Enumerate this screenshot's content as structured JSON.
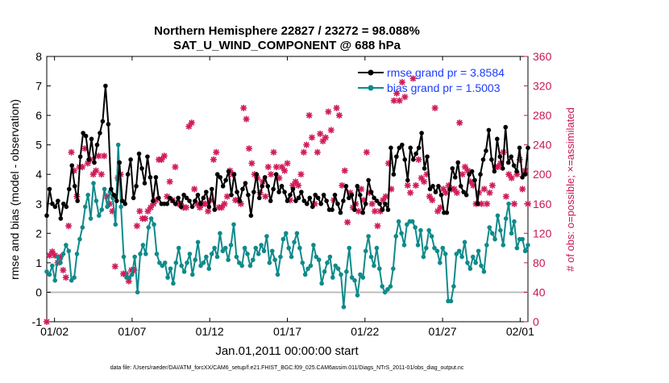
{
  "chart_data": {
    "type": "line",
    "title": "Northern Hemisphere 22827 / 23272 = 98.088%",
    "subtitle": "SAT_U_WIND_COMPONENT @ 688 hPa",
    "ylabel": "rmse and bias (model - observation)",
    "ylabel_right": "# of obs: o=possible; ×=assimilated",
    "xlabel": "Jan.01,2011 00:00:00 start",
    "footer": "data file: /Users/raeder/DAI/ATM_forcXX/CAM6_setup/f.e21.FHIST_BGC.f09_025.CAM6assim.011/Diags_NTrS_2011-01/obs_diag_output.nc",
    "ylim": [
      -1,
      8
    ],
    "ylim_right": [
      0,
      360
    ],
    "xlim": [
      0,
      31
    ],
    "yticks": [
      "-1",
      "0",
      "1",
      "2",
      "3",
      "4",
      "5",
      "6",
      "7",
      "8"
    ],
    "yticks_right": [
      "0",
      "40",
      "80",
      "120",
      "160",
      "200",
      "240",
      "280",
      "320",
      "360"
    ],
    "xticks": [
      {
        "day": 0.5,
        "label": "01/02"
      },
      {
        "day": 5.5,
        "label": "01/07"
      },
      {
        "day": 10.5,
        "label": "01/12"
      },
      {
        "day": 15.5,
        "label": "01/17"
      },
      {
        "day": 20.5,
        "label": "01/22"
      },
      {
        "day": 25.5,
        "label": "01/27"
      },
      {
        "day": 30.5,
        "label": "02/01"
      }
    ],
    "series": [
      {
        "name": "rmse grand pr = 3.8584",
        "color": "#000000",
        "values": [
          2.6,
          3.5,
          3.0,
          2.9,
          3.1,
          2.5,
          3.0,
          2.9,
          3.5,
          4.3,
          3.6,
          3.1,
          4.6,
          5.4,
          5.3,
          4.5,
          5.2,
          4.4,
          5.0,
          5.4,
          5.8,
          7.0,
          5.7,
          3.5,
          3.3,
          3.1,
          4.4,
          3.1,
          3.0,
          4.0,
          4.5,
          3.2,
          3.6,
          4.7,
          4.2,
          3.7,
          4.6,
          3.9,
          3.1,
          3.9,
          3.2,
          3.0,
          3.0,
          3.0,
          3.2,
          3.1,
          3.0,
          3.2,
          2.9,
          3.3,
          3.2,
          3.1,
          2.9,
          3.1,
          3.3,
          3.0,
          3.2,
          3.4,
          2.9,
          3.5,
          2.8,
          4.0,
          3.9,
          3.6,
          3.8,
          4.1,
          3.3,
          4.0,
          3.4,
          3.1,
          3.5,
          3.7,
          3.3,
          2.6,
          3.4,
          4.0,
          3.2,
          3.6,
          3.9,
          3.6,
          3.1,
          3.5,
          4.0,
          3.4,
          3.6,
          3.4,
          3.1,
          3.3,
          3.5,
          3.1,
          3.2,
          3.4,
          3.1,
          3.0,
          3.2,
          2.9,
          3.3,
          3.2,
          3.0,
          3.3,
          3.1,
          2.8,
          2.8,
          3.3,
          3.0,
          2.7,
          3.1,
          3.6,
          3.2,
          3.3,
          2.8,
          3.6,
          3.3,
          2.7,
          3.0,
          3.8,
          3.4,
          3.2,
          3.1,
          3.0,
          2.8,
          3.0,
          2.8,
          4.9,
          4.0,
          4.6,
          4.9,
          5.0,
          4.5,
          3.8,
          4.9,
          4.5,
          4.7,
          4.9,
          5.4,
          4.2,
          4.6,
          3.5,
          3.6,
          3.4,
          3.6,
          3.3,
          2.7,
          2.7,
          3.5,
          4.2,
          3.9,
          4.4,
          3.6,
          3.4,
          3.3,
          4.0,
          4.1,
          3.8,
          3.0,
          4.0,
          4.5,
          4.8,
          5.5,
          4.5,
          4.1,
          5.2,
          4.6,
          4.2,
          5.6,
          4.4,
          4.6,
          4.3,
          4.1,
          4.9,
          3.9,
          4.0,
          4.9
        ]
      },
      {
        "name": "bias grand pr = 1.5003",
        "color": "#0f8a8a",
        "values": [
          0.7,
          0.6,
          0.9,
          0.4,
          1.2,
          1.0,
          1.3,
          1.6,
          1.4,
          0.4,
          0.5,
          1.3,
          1.8,
          2.2,
          2.9,
          3.3,
          2.5,
          3.7,
          3.1,
          2.6,
          2.8,
          3.5,
          2.9,
          3.4,
          3.2,
          2.3,
          5.0,
          2.9,
          1.2,
          0.5,
          0.5,
          0.6,
          1.2,
          0.0,
          1.3,
          1.6,
          1.3,
          2.2,
          2.5,
          2.3,
          1.3,
          1.0,
          0.9,
          1.0,
          0.5,
          0.8,
          0.3,
          1.0,
          1.5,
          0.9,
          0.7,
          1.0,
          1.3,
          0.6,
          1.1,
          1.7,
          0.9,
          1.0,
          1.2,
          0.8,
          1.3,
          1.5,
          1.2,
          2.0,
          1.4,
          1.5,
          1.1,
          1.6,
          2.3,
          1.2,
          1.0,
          0.9,
          1.5,
          1.3,
          0.9,
          1.1,
          1.5,
          1.3,
          1.6,
          1.4,
          1.9,
          1.0,
          1.4,
          1.1,
          0.6,
          1.2,
          1.8,
          2.0,
          1.5,
          1.2,
          1.7,
          2.0,
          1.5,
          1.0,
          0.6,
          0.8,
          0.9,
          1.6,
          1.2,
          1.1,
          0.3,
          0.7,
          1.0,
          1.2,
          0.5,
          0.9,
          0.8,
          0.6,
          -0.5,
          0.7,
          1.5,
          0.5,
          0.4,
          -0.1,
          0.6,
          0.5,
          1.4,
          1.9,
          1.2,
          0.9,
          1.5,
          0.8,
          0.2,
          0.0,
          0.1,
          0.2,
          0.8,
          1.9,
          2.4,
          2.0,
          1.6,
          2.3,
          2.4,
          2.4,
          2.2,
          1.6,
          2.1,
          1.2,
          1.5,
          2.1,
          1.9,
          1.5,
          1.4,
          1.0,
          1.5,
          1.3,
          -0.3,
          -0.3,
          0.2,
          1.3,
          1.4,
          1.2,
          1.7,
          1.0,
          0.8,
          1.2,
          1.0,
          1.4,
          0.9,
          0.7,
          1.6,
          2.2,
          2.0,
          1.8,
          2.6,
          2.1,
          1.6,
          2.5,
          3.0,
          2.0,
          2.4,
          1.5,
          1.8,
          1.8,
          1.4,
          1.6
        ]
      },
      {
        "name": "obs assimilated",
        "color": "#d01c59",
        "axis": "right",
        "marker": "asterisk",
        "values": [
          0,
          90,
          95,
          90,
          80,
          88,
          70,
          60,
          130,
          230,
          205,
          170,
          210,
          210,
          235,
          215,
          220,
          200,
          205,
          225,
          200,
          225,
          170,
          160,
          150,
          75,
          195,
          200,
          65,
          65,
          55,
          70,
          70,
          130,
          150,
          140,
          140,
          150,
          155,
          160,
          165,
          220,
          220,
          225,
          170,
          190,
          165,
          210,
          160,
          160,
          155,
          155,
          265,
          270,
          180,
          160,
          155,
          160,
          160,
          150,
          165,
          220,
          230,
          155,
          155,
          160,
          170,
          205,
          200,
          165,
          165,
          160,
          290,
          275,
          235,
          215,
          200,
          195,
          175,
          190,
          170,
          210,
          200,
          230,
          210,
          195,
          210,
          205,
          215,
          165,
          185,
          190,
          185,
          200,
          230,
          240,
          280,
          250,
          160,
          230,
          255,
          245,
          250,
          285,
          260,
          165,
          290,
          280,
          185,
          205,
          135,
          175,
          155,
          160,
          150,
          180,
          165,
          230,
          175,
          160,
          150,
          130,
          150,
          165,
          170,
          215,
          180,
          300,
          310,
          300,
          325,
          305,
          185,
          175,
          330,
          185,
          220,
          195,
          190,
          200,
          170,
          165,
          290,
          150,
          155,
          180,
          175,
          185,
          180,
          180,
          175,
          270,
          200,
          210,
          205,
          190,
          185,
          160,
          175,
          160,
          180,
          160,
          175,
          185,
          210,
          210,
          215,
          230,
          170,
          200,
          195,
          160,
          200,
          220,
          180,
          205,
          160
        ]
      }
    ],
    "legend_location": "top-right"
  }
}
